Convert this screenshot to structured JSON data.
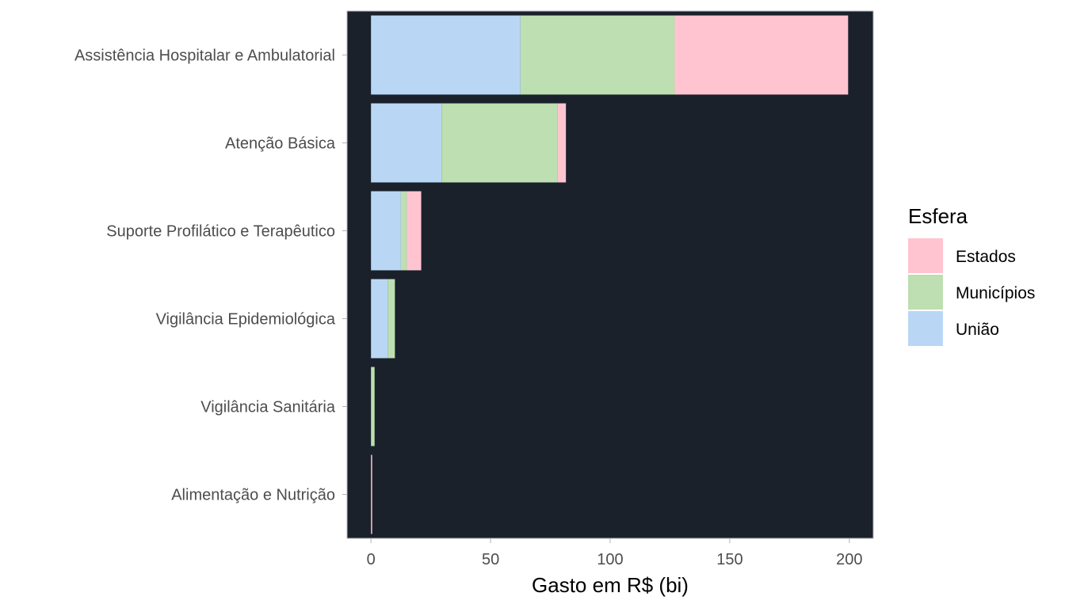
{
  "chart_data": {
    "type": "bar",
    "orientation": "horizontal",
    "stacked": true,
    "categories": [
      "Assistência Hospitalar e Ambulatorial",
      "Atenção Básica",
      "Suporte Profilático e Terapêutico",
      "Vigilância Epidemiológica",
      "Vigilância Sanitária",
      "Alimentação e Nutrição"
    ],
    "series": [
      {
        "name": "União",
        "color": "#b9d7f5",
        "values": [
          62.5,
          29.5,
          12.5,
          7.0,
          0.0,
          0.0
        ]
      },
      {
        "name": "Municípios",
        "color": "#bddfb1",
        "values": [
          64.5,
          48.5,
          2.5,
          3.0,
          1.5,
          0.0
        ]
      },
      {
        "name": "Estados",
        "color": "#ffc4d0",
        "values": [
          72.5,
          3.5,
          6.0,
          0.0,
          0.0,
          0.5
        ]
      }
    ],
    "xlabel": "Gasto em R$ (bi)",
    "ylabel": "",
    "xlim": [
      -10,
      210
    ],
    "xticks": [
      0,
      50,
      100,
      150,
      200
    ],
    "legend": {
      "title": "Esfera",
      "position": "right",
      "order": [
        "Estados",
        "Municípios",
        "União"
      ]
    },
    "panel_background": "#1a212b",
    "grid": false
  }
}
